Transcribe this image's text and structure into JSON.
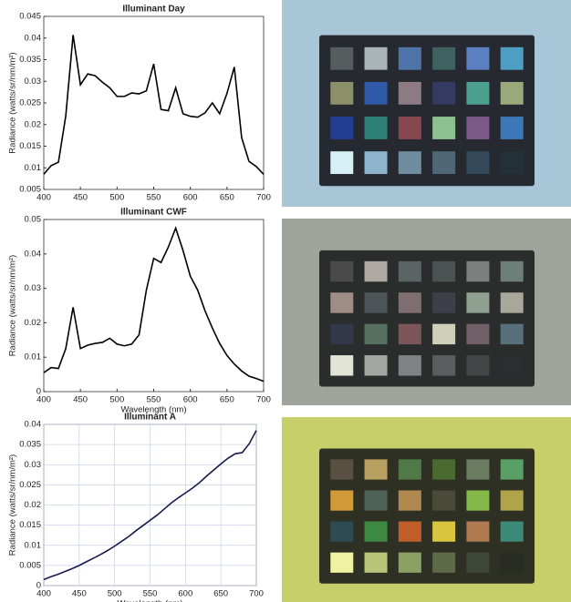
{
  "chart_data": [
    {
      "type": "line",
      "title": "Illuminant Day",
      "ylabel": "Radiance (watts/sr/nm/m²)",
      "color": "#000000",
      "grid": false,
      "x": [
        400,
        410,
        420,
        430,
        440,
        450,
        460,
        470,
        480,
        490,
        500,
        510,
        520,
        530,
        540,
        550,
        560,
        570,
        580,
        590,
        600,
        610,
        620,
        630,
        640,
        650,
        660,
        670,
        680,
        690,
        700
      ],
      "values": [
        0.0085,
        0.0105,
        0.0113,
        0.022,
        0.0407,
        0.0292,
        0.0317,
        0.0313,
        0.0298,
        0.0285,
        0.0265,
        0.0265,
        0.0273,
        0.0271,
        0.0278,
        0.034,
        0.0235,
        0.0232,
        0.0285,
        0.0225,
        0.0219,
        0.0217,
        0.0227,
        0.025,
        0.0225,
        0.0272,
        0.0333,
        0.017,
        0.0115,
        0.0103,
        0.0085
      ],
      "xlim": [
        400,
        700
      ],
      "xticks": [
        400,
        450,
        500,
        550,
        600,
        650,
        700
      ],
      "ylim": [
        0.005,
        0.045
      ],
      "yticks": [
        0.005,
        0.01,
        0.015,
        0.02,
        0.025,
        0.03,
        0.035,
        0.04,
        0.045
      ]
    },
    {
      "type": "line",
      "title": "Illuminant CWF",
      "xlabel": "Wavelength (nm)",
      "ylabel": "Radiance (watts/sr/nm/m²)",
      "color": "#000000",
      "grid": false,
      "x": [
        400,
        410,
        420,
        430,
        440,
        450,
        460,
        470,
        480,
        490,
        500,
        510,
        520,
        530,
        540,
        550,
        560,
        570,
        580,
        590,
        600,
        610,
        620,
        630,
        640,
        650,
        660,
        670,
        680,
        690,
        700
      ],
      "values": [
        0.0055,
        0.007,
        0.0067,
        0.0125,
        0.0245,
        0.0125,
        0.0135,
        0.014,
        0.0143,
        0.0155,
        0.0138,
        0.0133,
        0.0138,
        0.0165,
        0.0295,
        0.0387,
        0.0375,
        0.042,
        0.0475,
        0.041,
        0.0335,
        0.0295,
        0.0235,
        0.0185,
        0.014,
        0.0105,
        0.008,
        0.006,
        0.0045,
        0.0038,
        0.003
      ],
      "xlim": [
        400,
        700
      ],
      "xticks": [
        400,
        450,
        500,
        550,
        600,
        650,
        700
      ],
      "ylim": [
        0,
        0.05
      ],
      "yticks": [
        0,
        0.01,
        0.02,
        0.03,
        0.04,
        0.05
      ]
    },
    {
      "type": "line",
      "title": "Illuminant A",
      "xlabel": "Wavelength (nm)",
      "ylabel": "Radiance (watts/sr/nm/m²)",
      "color": "#1a1a4e",
      "grid": true,
      "x": [
        400,
        410,
        420,
        430,
        440,
        450,
        460,
        470,
        480,
        490,
        500,
        510,
        520,
        530,
        540,
        550,
        560,
        570,
        580,
        590,
        600,
        610,
        620,
        630,
        640,
        650,
        660,
        670,
        680,
        690,
        700
      ],
      "values": [
        0.0015,
        0.0022,
        0.0028,
        0.0035,
        0.0042,
        0.005,
        0.0059,
        0.0068,
        0.0077,
        0.0087,
        0.0098,
        0.011,
        0.0122,
        0.0136,
        0.0149,
        0.0162,
        0.0175,
        0.019,
        0.0205,
        0.0218,
        0.023,
        0.0242,
        0.0256,
        0.0272,
        0.0287,
        0.0302,
        0.0316,
        0.0327,
        0.033,
        0.0352,
        0.0385
      ],
      "xlim": [
        400,
        700
      ],
      "xticks": [
        400,
        450,
        500,
        550,
        600,
        650,
        700
      ],
      "ylim": [
        0,
        0.04
      ],
      "yticks": [
        0,
        0.005,
        0.01,
        0.015,
        0.02,
        0.025,
        0.03,
        0.035,
        0.04
      ]
    }
  ]
}
